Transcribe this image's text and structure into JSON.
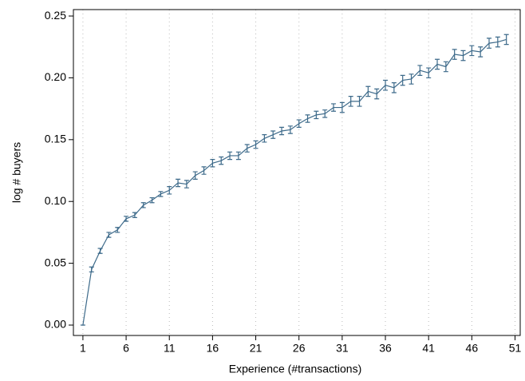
{
  "chart_data": {
    "type": "line",
    "xlabel": "Experience (#transactions)",
    "ylabel": "log # buyers",
    "x": [
      1,
      2,
      3,
      4,
      5,
      6,
      7,
      8,
      9,
      10,
      11,
      12,
      13,
      14,
      15,
      16,
      17,
      18,
      19,
      20,
      21,
      22,
      23,
      24,
      25,
      26,
      27,
      28,
      29,
      30,
      31,
      32,
      33,
      34,
      35,
      36,
      37,
      38,
      39,
      40,
      41,
      42,
      43,
      44,
      45,
      46,
      47,
      48,
      49,
      50
    ],
    "series": [
      {
        "color": "#3d6a8a",
        "values": [
          0.0,
          0.045,
          0.06,
          0.073,
          0.077,
          0.086,
          0.089,
          0.097,
          0.101,
          0.106,
          0.109,
          0.115,
          0.114,
          0.121,
          0.125,
          0.131,
          0.133,
          0.137,
          0.137,
          0.143,
          0.146,
          0.151,
          0.154,
          0.157,
          0.158,
          0.163,
          0.167,
          0.17,
          0.171,
          0.176,
          0.176,
          0.181,
          0.181,
          0.189,
          0.187,
          0.194,
          0.192,
          0.198,
          0.199,
          0.206,
          0.204,
          0.211,
          0.209,
          0.219,
          0.218,
          0.222,
          0.221,
          0.228,
          0.229,
          0.231
        ],
        "errors": [
          0,
          0.002,
          0.002,
          0.002,
          0.002,
          0.002,
          0.002,
          0.002,
          0.002,
          0.002,
          0.003,
          0.003,
          0.003,
          0.003,
          0.003,
          0.003,
          0.003,
          0.003,
          0.003,
          0.003,
          0.003,
          0.003,
          0.003,
          0.003,
          0.003,
          0.003,
          0.003,
          0.003,
          0.003,
          0.003,
          0.004,
          0.004,
          0.004,
          0.004,
          0.004,
          0.004,
          0.004,
          0.004,
          0.004,
          0.004,
          0.004,
          0.004,
          0.004,
          0.004,
          0.004,
          0.004,
          0.004,
          0.004,
          0.004,
          0.004
        ]
      }
    ],
    "xlim": [
      -0.1,
      51.6
    ],
    "xticks": [
      1,
      6,
      11,
      16,
      21,
      26,
      31,
      36,
      41,
      46,
      51
    ],
    "ylim": [
      -0.0084,
      0.2552
    ],
    "yticks": [
      {
        "value": 0,
        "label": "0.00"
      },
      {
        "value": 0.05,
        "label": "0.05"
      },
      {
        "value": 0.1,
        "label": "0.10"
      },
      {
        "value": 0.15,
        "label": "0.15"
      },
      {
        "value": 0.2,
        "label": "0.20"
      },
      {
        "value": 0.25,
        "label": "0.25"
      }
    ],
    "grid": "x"
  }
}
